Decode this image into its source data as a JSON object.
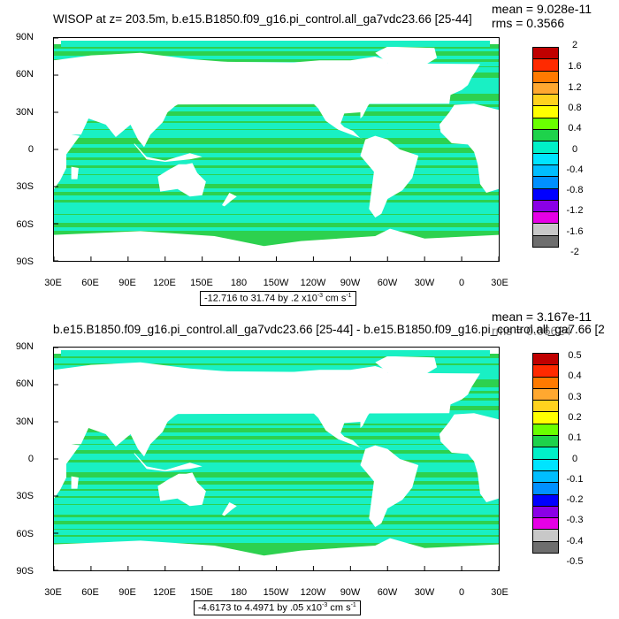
{
  "panels": [
    {
      "title": "WISOP at z= 203.5m, b.e15.B1850.f09_g16.pi_control.all_ga7vdc23.66 [25-44]",
      "mean_label": "mean = 9.028e-11",
      "rms_label": "rms = 0.3566",
      "subtitle_range": "-12.716 to 31.74 by .2 x10",
      "subtitle_exp": "-3",
      "subtitle_units": " cm s",
      "subtitle_units_exp": "-1",
      "colorbar_labels": [
        "2",
        "1.6",
        "1.2",
        "0.8",
        "0.4",
        "0",
        "-0.4",
        "-0.8",
        "-1.2",
        "-1.6",
        "-2"
      ]
    },
    {
      "title": "b.e15.B1850.f09_g16.pi_control.all_ga7vdc23.66 [25-44] - b.e15.B1850.f09_g16.pi_control.all_ga7.66 [2",
      "mean_label": "mean = 3.167e-11",
      "rms_label": "rms = 0.06624",
      "subtitle_range": "-4.6173 to 4.4971 by .05 x10",
      "subtitle_exp": "-3",
      "subtitle_units": " cm s",
      "subtitle_units_exp": "-1",
      "colorbar_labels": [
        "0.5",
        "0.4",
        "0.3",
        "0.2",
        "0.1",
        "0",
        "-0.1",
        "-0.2",
        "-0.3",
        "-0.4",
        "-0.5"
      ]
    }
  ],
  "axes": {
    "lat_labels": [
      "90N",
      "60N",
      "30N",
      "0",
      "30S",
      "60S",
      "90S"
    ],
    "lon_labels": [
      "30E",
      "60E",
      "90E",
      "120E",
      "150E",
      "180",
      "150W",
      "120W",
      "90W",
      "60W",
      "30W",
      "0",
      "30E"
    ]
  },
  "colorbar_colors": [
    "#c00000",
    "#ff2a00",
    "#ff7a00",
    "#ffa830",
    "#ffd21e",
    "#ffff00",
    "#6aff00",
    "#1ed24b",
    "#00f0c8",
    "#00e4ff",
    "#00beff",
    "#0090ff",
    "#0000ff",
    "#8a00e6",
    "#e600e6",
    "#c8c8c8",
    "#6e6e6e"
  ],
  "ocean_colors": {
    "base": "#2dd14f",
    "band": "#19f0c4",
    "land": "#ffffff"
  }
}
